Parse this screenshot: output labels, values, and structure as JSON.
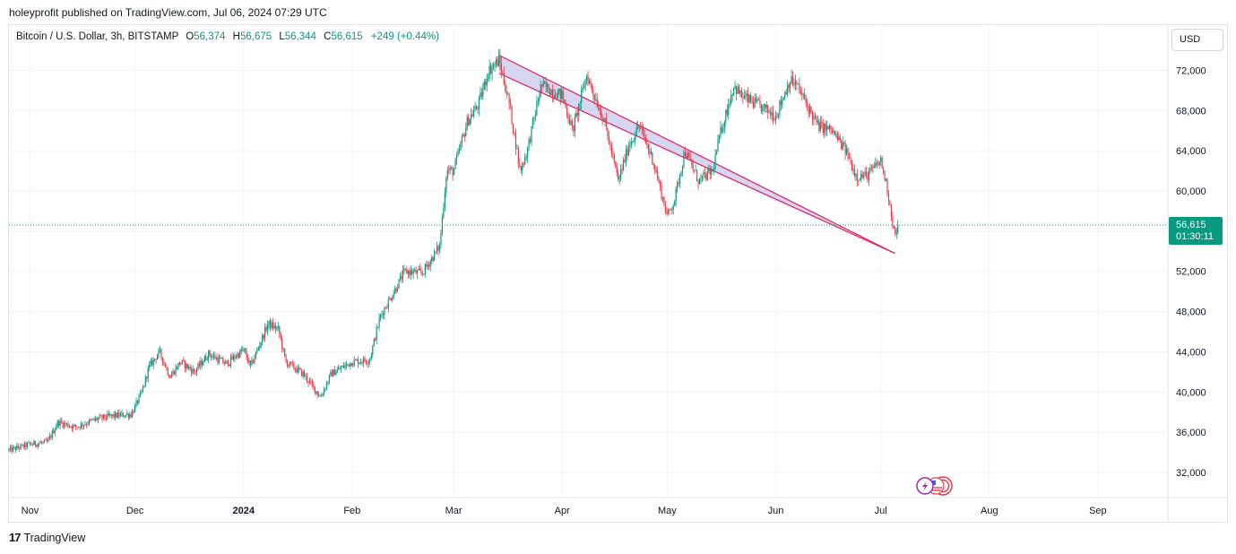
{
  "header": {
    "publish_line": "holeyprofit published on TradingView.com, Jul 06, 2024 07:29 UTC"
  },
  "legend": {
    "symbol": "Bitcoin / U.S. Dollar, 3h, BITSTAMP",
    "open_label": "O",
    "open": "56,374",
    "high_label": "H",
    "high": "56,675",
    "low_label": "L",
    "low": "56,344",
    "close_label": "C",
    "close": "56,615",
    "change": "+249 (+0.44%)"
  },
  "currency_button": "USD",
  "last_price": {
    "price": "56,615",
    "countdown": "01:30:11"
  },
  "footer": {
    "logo_mark": "17",
    "logo_text": "TradingView"
  },
  "colors": {
    "up": "#089981",
    "down": "#f23645",
    "channel_fill": "#c5cae9",
    "channel_line": "#e91e63",
    "grid": "#f0f3fa",
    "price_line": "#089981"
  },
  "chart_data": {
    "type": "candlestick",
    "title": "",
    "y_axis": {
      "ticks": [
        "32,000",
        "36,000",
        "40,000",
        "44,000",
        "48,000",
        "52,000",
        "56,000",
        "60,000",
        "64,000",
        "68,000",
        "72,000"
      ],
      "values": [
        32000,
        36000,
        40000,
        44000,
        48000,
        52000,
        56000,
        60000,
        64000,
        68000,
        72000
      ],
      "range": [
        29500,
        76500
      ]
    },
    "x_axis": {
      "ticks": [
        "Nov",
        "Dec",
        "2024",
        "Feb",
        "Mar",
        "Apr",
        "May",
        "Jun",
        "Jul",
        "Aug",
        "Sep"
      ],
      "range": [
        "2023-10-26",
        "2024-09-21"
      ]
    },
    "price_path": [
      [
        "2023-10-26",
        34200
      ],
      [
        "2023-11-01",
        34800
      ],
      [
        "2023-11-06",
        35000
      ],
      [
        "2023-11-09",
        37000
      ],
      [
        "2023-11-14",
        36500
      ],
      [
        "2023-11-20",
        37300
      ],
      [
        "2023-11-24",
        37600
      ],
      [
        "2023-11-30",
        37800
      ],
      [
        "2023-12-03",
        40000
      ],
      [
        "2023-12-05",
        42500
      ],
      [
        "2023-12-08",
        44000
      ],
      [
        "2023-12-11",
        41500
      ],
      [
        "2023-12-14",
        43000
      ],
      [
        "2023-12-18",
        42000
      ],
      [
        "2023-12-22",
        43800
      ],
      [
        "2023-12-27",
        42800
      ],
      [
        "2024-01-01",
        44200
      ],
      [
        "2024-01-03",
        42500
      ],
      [
        "2024-01-08",
        46800
      ],
      [
        "2024-01-11",
        46200
      ],
      [
        "2024-01-13",
        43000
      ],
      [
        "2024-01-18",
        41800
      ],
      [
        "2024-01-23",
        39500
      ],
      [
        "2024-01-26",
        41800
      ],
      [
        "2024-02-01",
        43000
      ],
      [
        "2024-02-06",
        43200
      ],
      [
        "2024-02-09",
        47500
      ],
      [
        "2024-02-13",
        50000
      ],
      [
        "2024-02-16",
        52000
      ],
      [
        "2024-02-21",
        51800
      ],
      [
        "2024-02-26",
        54500
      ],
      [
        "2024-02-28",
        62000
      ],
      [
        "2024-03-01",
        62000
      ],
      [
        "2024-03-05",
        67000
      ],
      [
        "2024-03-08",
        68500
      ],
      [
        "2024-03-11",
        72000
      ],
      [
        "2024-03-14",
        73000
      ],
      [
        "2024-03-17",
        68500
      ],
      [
        "2024-03-20",
        62000
      ],
      [
        "2024-03-22",
        64000
      ],
      [
        "2024-03-26",
        70500
      ],
      [
        "2024-04-01",
        69500
      ],
      [
        "2024-04-04",
        66000
      ],
      [
        "2024-04-08",
        71500
      ],
      [
        "2024-04-13",
        67000
      ],
      [
        "2024-04-17",
        61000
      ],
      [
        "2024-04-20",
        64500
      ],
      [
        "2024-04-23",
        66500
      ],
      [
        "2024-04-27",
        63000
      ],
      [
        "2024-05-01",
        57500
      ],
      [
        "2024-05-03",
        59000
      ],
      [
        "2024-05-06",
        64000
      ],
      [
        "2024-05-10",
        61000
      ],
      [
        "2024-05-14",
        62000
      ],
      [
        "2024-05-16",
        65500
      ],
      [
        "2024-05-20",
        70500
      ],
      [
        "2024-05-22",
        69500
      ],
      [
        "2024-05-27",
        68500
      ],
      [
        "2024-06-01",
        67500
      ],
      [
        "2024-06-05",
        71000
      ],
      [
        "2024-06-07",
        70500
      ],
      [
        "2024-06-10",
        68500
      ],
      [
        "2024-06-13",
        66500
      ],
      [
        "2024-06-17",
        66000
      ],
      [
        "2024-06-21",
        64000
      ],
      [
        "2024-06-24",
        61500
      ],
      [
        "2024-06-27",
        61500
      ],
      [
        "2024-07-01",
        63000
      ],
      [
        "2024-07-03",
        60000
      ],
      [
        "2024-07-05",
        55500
      ],
      [
        "2024-07-06",
        56615
      ]
    ],
    "annotations": [
      {
        "type": "descending-channel",
        "from": [
          "2024-03-14",
          73500
        ],
        "to": [
          "2024-07-05",
          53800
        ],
        "width": 1800
      }
    ],
    "last_price_line": 56615
  }
}
